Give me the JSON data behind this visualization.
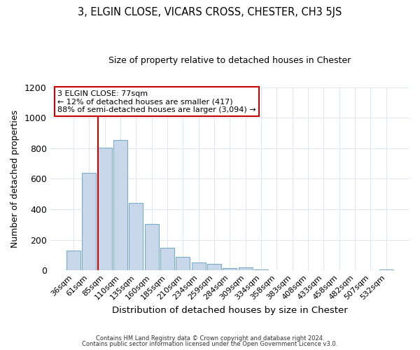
{
  "title": "3, ELGIN CLOSE, VICARS CROSS, CHESTER, CH3 5JS",
  "subtitle": "Size of property relative to detached houses in Chester",
  "xlabel": "Distribution of detached houses by size in Chester",
  "ylabel": "Number of detached properties",
  "bar_labels": [
    "36sqm",
    "61sqm",
    "85sqm",
    "110sqm",
    "135sqm",
    "160sqm",
    "185sqm",
    "210sqm",
    "234sqm",
    "259sqm",
    "284sqm",
    "309sqm",
    "334sqm",
    "358sqm",
    "383sqm",
    "408sqm",
    "433sqm",
    "458sqm",
    "482sqm",
    "507sqm",
    "532sqm"
  ],
  "bar_values": [
    130,
    640,
    805,
    855,
    440,
    305,
    150,
    90,
    52,
    42,
    14,
    20,
    5,
    2,
    0,
    0,
    0,
    0,
    0,
    0,
    5
  ],
  "bar_color": "#c8d8ea",
  "bar_edge_color": "#7aaac8",
  "vline_x": 2,
  "vline_color": "#cc0000",
  "ylim": [
    0,
    1200
  ],
  "yticks": [
    0,
    200,
    400,
    600,
    800,
    1000,
    1200
  ],
  "annotation_title": "3 ELGIN CLOSE: 77sqm",
  "annotation_line1": "← 12% of detached houses are smaller (417)",
  "annotation_line2": "88% of semi-detached houses are larger (3,094) →",
  "annotation_box_color": "#ffffff",
  "annotation_box_edge": "#cc0000",
  "footer1": "Contains HM Land Registry data © Crown copyright and database right 2024.",
  "footer2": "Contains public sector information licensed under the Open Government Licence v3.0.",
  "grid_color": "#dde6f0",
  "bg_color": "#ffffff"
}
